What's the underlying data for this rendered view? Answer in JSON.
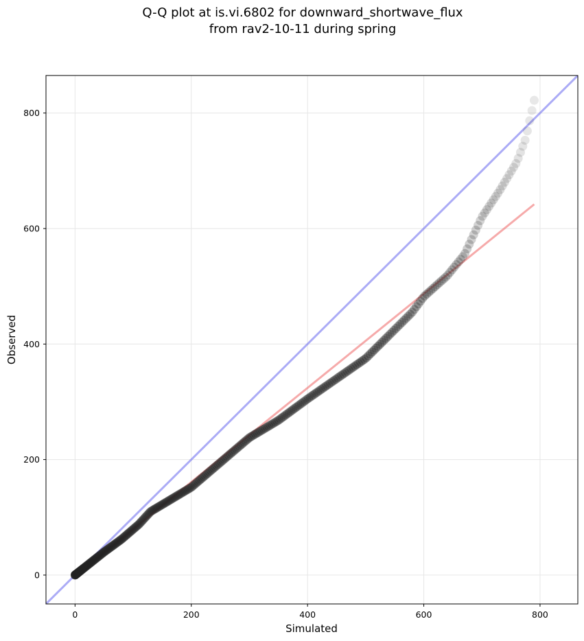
{
  "chart_data": {
    "type": "scatter",
    "title_line1": "Q-Q plot at is.vi.6802 for downward_shortwave_flux",
    "title_line2": "from rav2-10-11 during spring",
    "xlabel": "Simulated",
    "ylabel": "Observed",
    "xlim": [
      -50,
      865
    ],
    "ylim": [
      -50,
      865
    ],
    "xticks": [
      0,
      200,
      400,
      600,
      800
    ],
    "yticks": [
      0,
      200,
      400,
      600,
      800
    ],
    "xtick_labels": [
      "0",
      "200",
      "400",
      "600",
      "800"
    ],
    "ytick_labels": [
      "0",
      "200",
      "400",
      "600",
      "800"
    ],
    "grid": true,
    "reference_line": {
      "label": "1:1",
      "color": "#6666ee",
      "x": [
        -50,
        865
      ],
      "y": [
        -50,
        865
      ]
    },
    "fit_line": {
      "color": "#ee5555",
      "x": [
        0,
        790
      ],
      "y": [
        -2,
        642
      ]
    },
    "quantile_curve": {
      "x": [
        0,
        20,
        50,
        80,
        110,
        130,
        160,
        200,
        250,
        300,
        350,
        400,
        450,
        500,
        550,
        580,
        600,
        640,
        670,
        700,
        730,
        760,
        775,
        790
      ],
      "y": [
        0,
        16,
        40,
        62,
        88,
        110,
        128,
        152,
        195,
        238,
        268,
        305,
        340,
        375,
        425,
        455,
        482,
        518,
        555,
        620,
        665,
        715,
        755,
        822
      ]
    },
    "n_points": 320,
    "point_color": "#222222"
  }
}
